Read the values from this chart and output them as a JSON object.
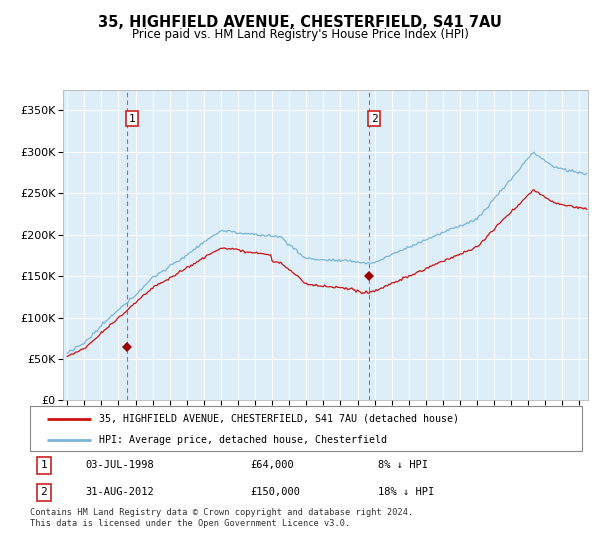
{
  "title": "35, HIGHFIELD AVENUE, CHESTERFIELD, S41 7AU",
  "subtitle": "Price paid vs. HM Land Registry's House Price Index (HPI)",
  "legend_line1": "35, HIGHFIELD AVENUE, CHESTERFIELD, S41 7AU (detached house)",
  "legend_line2": "HPI: Average price, detached house, Chesterfield",
  "transaction1_date": "03-JUL-1998",
  "transaction1_price": "£64,000",
  "transaction1_hpi": "8% ↓ HPI",
  "transaction1_year": 1998.5,
  "transaction1_val": 64000,
  "transaction2_date": "31-AUG-2012",
  "transaction2_price": "£150,000",
  "transaction2_hpi": "18% ↓ HPI",
  "transaction2_year": 2012.667,
  "transaction2_val": 150000,
  "footer": "Contains HM Land Registry data © Crown copyright and database right 2024.\nThis data is licensed under the Open Government Licence v3.0.",
  "hpi_color": "#7ab4d8",
  "price_color": "#cc1111",
  "marker_color": "#990000",
  "background_color": "#ddeef8",
  "ylim": [
    0,
    375000
  ],
  "xlim_start": 1994.75,
  "xlim_end": 2025.5,
  "yticks": [
    0,
    50000,
    100000,
    150000,
    200000,
    250000,
    300000,
    350000
  ]
}
